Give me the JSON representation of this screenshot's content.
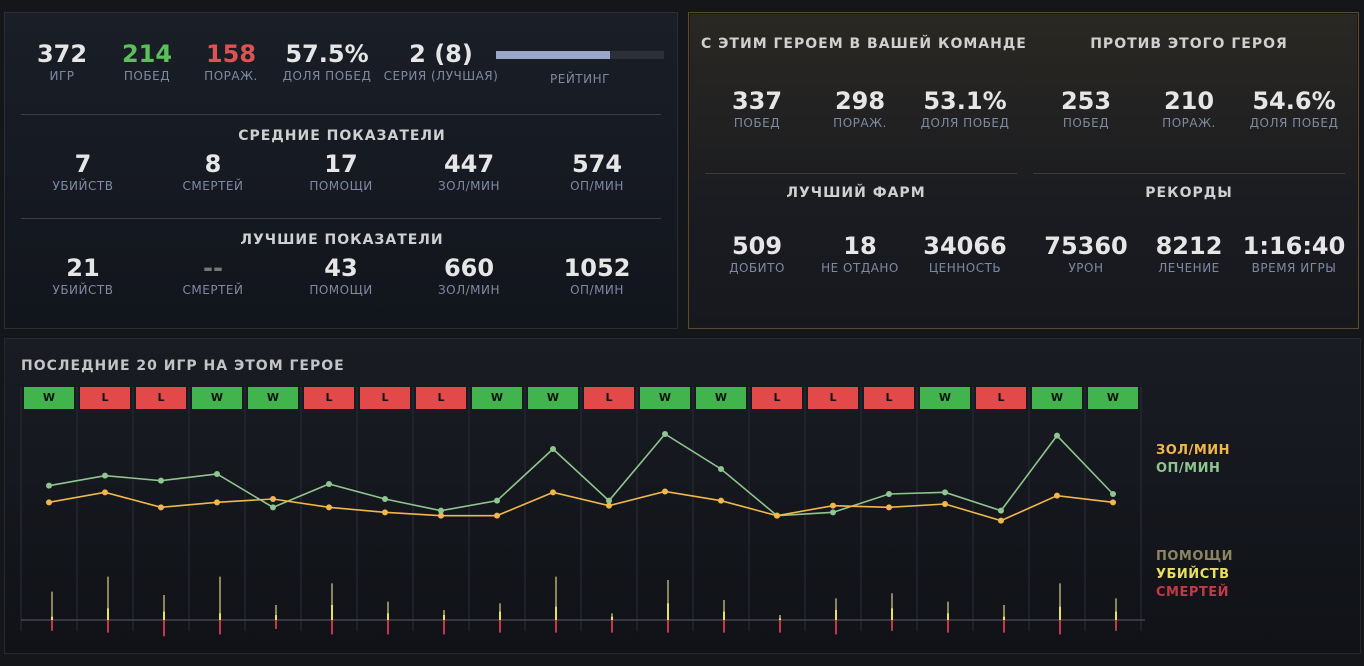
{
  "summary": {
    "games": {
      "value": "372",
      "label": "ИГР"
    },
    "wins": {
      "value": "214",
      "label": "ПОБЕД"
    },
    "losses": {
      "value": "158",
      "label": "ПОРАЖ."
    },
    "winrate": {
      "value": "57.5%",
      "label": "ДОЛЯ ПОБЕД"
    },
    "streak": {
      "value": "2 (8)",
      "label": "СЕРИЯ (ЛУЧШАЯ)"
    },
    "rating": {
      "label": "РЕЙТИНГ",
      "fill_fraction": 0.68
    }
  },
  "averages": {
    "title": "СРЕДНИЕ ПОКАЗАТЕЛИ",
    "items": [
      {
        "value": "7",
        "label": "УБИЙСТВ"
      },
      {
        "value": "8",
        "label": "СМЕРТЕЙ"
      },
      {
        "value": "17",
        "label": "ПОМОЩИ"
      },
      {
        "value": "447",
        "label": "ЗОЛ/МИН"
      },
      {
        "value": "574",
        "label": "ОП/МИН"
      }
    ]
  },
  "best": {
    "title": "ЛУЧШИЕ ПОКАЗАТЕЛИ",
    "items": [
      {
        "value": "21",
        "label": "УБИЙСТВ"
      },
      {
        "value": "--",
        "label": "СМЕРТЕЙ"
      },
      {
        "value": "43",
        "label": "ПОМОЩИ"
      },
      {
        "value": "660",
        "label": "ЗОЛ/МИН"
      },
      {
        "value": "1052",
        "label": "ОП/МИН"
      }
    ]
  },
  "with_hero": {
    "title": "С ЭТИМ ГЕРОЕМ В ВАШЕЙ КОМАНДЕ",
    "items": [
      {
        "value": "337",
        "label": "ПОБЕД"
      },
      {
        "value": "298",
        "label": "ПОРАЖ."
      },
      {
        "value": "53.1%",
        "label": "ДОЛЯ ПОБЕД"
      }
    ]
  },
  "against_hero": {
    "title": "ПРОТИВ ЭТОГО ГЕРОЯ",
    "items": [
      {
        "value": "253",
        "label": "ПОБЕД"
      },
      {
        "value": "210",
        "label": "ПОРАЖ."
      },
      {
        "value": "54.6%",
        "label": "ДОЛЯ ПОБЕД"
      }
    ]
  },
  "best_farm": {
    "title": "ЛУЧШИЙ ФАРМ",
    "items": [
      {
        "value": "509",
        "label": "ДОБИТО"
      },
      {
        "value": "18",
        "label": "НЕ ОТДАНО"
      },
      {
        "value": "34066",
        "label": "ЦЕННОСТЬ"
      }
    ]
  },
  "records": {
    "title": "РЕКОРДЫ",
    "items": [
      {
        "value": "75360",
        "label": "УРОН"
      },
      {
        "value": "8212",
        "label": "ЛЕЧЕНИЕ"
      },
      {
        "value": "1:16:40",
        "label": "ВРЕМЯ ИГРЫ"
      }
    ]
  },
  "recent": {
    "title": "ПОСЛЕДНИЕ 20 ИГР НА ЭТОМ ГЕРОЕ"
  },
  "legend": {
    "gpm": "ЗОЛ/МИН",
    "xpm": "ОП/МИН",
    "assists": "ПОМОЩИ",
    "kills": "УБИЙСТВ",
    "deaths": "СМЕРТЕЙ"
  },
  "colors": {
    "gpm": "#f2b74a",
    "xpm": "#8fc58f",
    "assists": "#8c8560",
    "kills": "#e8e060",
    "deaths": "#c43848",
    "win": "#42b44e",
    "loss": "#e24a4a"
  },
  "chart_data": {
    "type": "line",
    "title": "ПОСЛЕДНИЕ 20 ИГР НА ЭТОМ ГЕРОЕ",
    "x": [
      1,
      2,
      3,
      4,
      5,
      6,
      7,
      8,
      9,
      10,
      11,
      12,
      13,
      14,
      15,
      16,
      17,
      18,
      19,
      20
    ],
    "results": [
      "W",
      "L",
      "L",
      "W",
      "W",
      "L",
      "L",
      "L",
      "W",
      "W",
      "L",
      "W",
      "W",
      "L",
      "L",
      "L",
      "W",
      "L",
      "W",
      "W"
    ],
    "series": [
      {
        "name": "ОП/МИН",
        "values": [
          500,
          560,
          530,
          570,
          370,
          510,
          420,
          350,
          410,
          720,
          410,
          810,
          600,
          320,
          340,
          450,
          460,
          350,
          800,
          450
        ]
      },
      {
        "name": "ЗОЛ/МИН",
        "values": [
          400,
          460,
          370,
          400,
          420,
          370,
          340,
          320,
          320,
          460,
          380,
          465,
          410,
          320,
          380,
          370,
          390,
          290,
          440,
          400
        ]
      },
      {
        "name": "ПОМОЩИ",
        "values": [
          17,
          26,
          15,
          26,
          9,
          22,
          11,
          6,
          10,
          26,
          4,
          24,
          12,
          3,
          13,
          16,
          11,
          9,
          22,
          13
        ]
      },
      {
        "name": "УБИЙСТВ",
        "values": [
          2,
          7,
          5,
          4,
          3,
          9,
          4,
          3,
          5,
          8,
          2,
          10,
          5,
          1,
          6,
          7,
          4,
          2,
          8,
          5
        ]
      },
      {
        "name": "СМЕРТЕЙ",
        "values": [
          6,
          7,
          9,
          8,
          5,
          8,
          8,
          8,
          7,
          7,
          7,
          7,
          7,
          7,
          8,
          6,
          7,
          7,
          8,
          6
        ]
      }
    ],
    "ylim_economy": [
      0,
      900
    ],
    "ylim_kda": [
      0,
      30
    ]
  }
}
